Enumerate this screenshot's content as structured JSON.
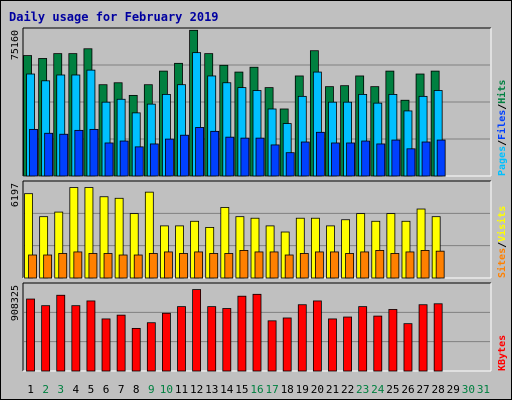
{
  "chart_data": {
    "type": "bar",
    "title": "Daily usage for February 2019",
    "x": [
      "1",
      "2",
      "3",
      "4",
      "5",
      "6",
      "7",
      "8",
      "9",
      "10",
      "11",
      "12",
      "13",
      "14",
      "15",
      "16",
      "17",
      "18",
      "19",
      "20",
      "21",
      "22",
      "23",
      "24",
      "25",
      "26",
      "27",
      "28",
      "29",
      "30",
      "31"
    ],
    "weekend_days": [
      2,
      3,
      9,
      10,
      16,
      17,
      23,
      24,
      30,
      31
    ],
    "panels": [
      {
        "id": "hits_files_pages",
        "scale_label": "75160",
        "ylim": [
          0,
          75160
        ],
        "legend": [
          "Pages",
          "/",
          "Files",
          "/",
          "Hits"
        ],
        "legend_colors": [
          "#00c0ff",
          "#000000",
          "#0040ff",
          "#000000",
          "#008040"
        ],
        "series": [
          {
            "name": "Hits",
            "color": "#008040",
            "values": [
              62000,
              60500,
              63000,
              63000,
              65500,
              47000,
              48000,
              41500,
              47000,
              54000,
              58000,
              75000,
              63000,
              57000,
              53500,
              56000,
              45500,
              34500,
              51500,
              64500,
              46000,
              46500,
              51500,
              46000,
              54000,
              39000,
              52500,
              54000,
              0,
              0,
              0
            ]
          },
          {
            "name": "Files",
            "color": "#00c0ff",
            "values": [
              52500,
              49000,
              52000,
              52000,
              54500,
              38000,
              39500,
              32500,
              37000,
              42000,
              47000,
              63500,
              51500,
              48000,
              45500,
              44000,
              34500,
              27000,
              41000,
              53500,
              38000,
              38000,
              42000,
              37500,
              42000,
              33500,
              41000,
              44000,
              0,
              0,
              0
            ]
          },
          {
            "name": "Pages",
            "color": "#0040ff",
            "values": [
              24000,
              22000,
              21500,
              23500,
              24000,
              17000,
              18000,
              15000,
              16500,
              19000,
              21000,
              25000,
              23000,
              20000,
              19500,
              19500,
              16000,
              12000,
              17500,
              22500,
              17000,
              17000,
              18000,
              16500,
              18500,
              14000,
              17500,
              18500,
              0,
              0,
              0
            ]
          }
        ]
      },
      {
        "id": "visits_sites",
        "scale_label": "6197",
        "ylim": [
          0,
          6197
        ],
        "legend": [
          "Sites",
          "/",
          "Visits"
        ],
        "legend_colors": [
          "#ff8000",
          "#000000",
          "#ffff00"
        ],
        "series": [
          {
            "name": "Visits",
            "color": "#ffff00",
            "values": [
              5500,
              4000,
              4300,
              5900,
              5900,
              5300,
              5200,
              4200,
              5600,
              3400,
              3400,
              3700,
              3300,
              4600,
              4000,
              3900,
              3400,
              3000,
              3900,
              3900,
              3400,
              3800,
              4200,
              3700,
              4200,
              3700,
              4500,
              4000,
              0,
              0,
              0
            ]
          },
          {
            "name": "Sites",
            "color": "#ff8000",
            "values": [
              1500,
              1500,
              1600,
              1700,
              1600,
              1600,
              1500,
              1500,
              1600,
              1700,
              1600,
              1700,
              1600,
              1600,
              1800,
              1700,
              1700,
              1500,
              1600,
              1700,
              1700,
              1600,
              1700,
              1800,
              1600,
              1700,
              1800,
              1750,
              0,
              0,
              0
            ]
          }
        ]
      },
      {
        "id": "kbytes",
        "scale_label": "908325",
        "ylim": [
          0,
          908325
        ],
        "legend": [
          "KBytes"
        ],
        "legend_colors": [
          "#ff0000"
        ],
        "series": [
          {
            "name": "KBytes",
            "color": "#ff0000",
            "values": [
              760000,
              690000,
              800000,
              690000,
              740000,
              550000,
              590000,
              450000,
              510000,
              610000,
              680000,
              860000,
              680000,
              660000,
              790000,
              810000,
              530000,
              560000,
              700000,
              740000,
              550000,
              570000,
              680000,
              580000,
              650000,
              500000,
              700000,
              710000,
              0,
              0,
              0
            ]
          }
        ]
      }
    ]
  }
}
